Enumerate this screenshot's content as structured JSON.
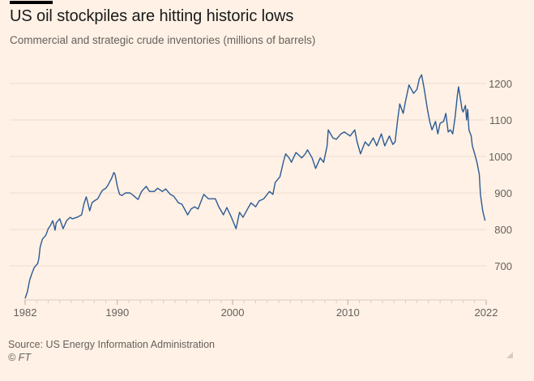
{
  "header": {
    "title": "US oil stockpiles are hitting historic lows",
    "subtitle": "Commercial and strategic crude inventories (millions of barrels)"
  },
  "footer": {
    "source": "Source: US Energy Information Administration",
    "copyright": "© FT"
  },
  "colors": {
    "background": "#FFF1E5",
    "line": "#2B5A94",
    "grid": "#EBDDD1",
    "tick_text": "#66605c"
  },
  "chart_data": {
    "type": "line",
    "title": "US oil stockpiles are hitting historic lows",
    "subtitle": "Commercial and strategic crude inventories (millions of barrels)",
    "xlabel": "",
    "ylabel": "",
    "xlim": [
      1982,
      2022
    ],
    "ylim": [
      600,
      1250
    ],
    "x_ticks": [
      1982,
      1990,
      2000,
      2010,
      2022
    ],
    "x_tick_labels": [
      "1982",
      "1990",
      "2000",
      "2010",
      "2022"
    ],
    "y_ticks": [
      700,
      800,
      900,
      1000,
      1100,
      1200
    ],
    "y_tick_labels": [
      "700",
      "800",
      "900",
      "1000",
      "1100",
      "1200"
    ],
    "y_axis_side": "right",
    "grid": true,
    "legend": "none",
    "series": [
      {
        "name": "Commercial and strategic crude inventories",
        "x": [
          1982.0,
          1982.2,
          1982.4,
          1982.6,
          1982.8,
          1983.1,
          1983.2,
          1983.3,
          1983.5,
          1983.8,
          1984.0,
          1984.2,
          1984.4,
          1984.6,
          1984.7,
          1985.0,
          1985.3,
          1985.6,
          1985.9,
          1986.1,
          1986.5,
          1986.9,
          1987.1,
          1987.3,
          1987.4,
          1987.6,
          1987.8,
          1988.0,
          1988.3,
          1988.5,
          1988.7,
          1989.0,
          1989.2,
          1989.5,
          1989.7,
          1989.8,
          1990.0,
          1990.2,
          1990.4,
          1990.7,
          1991.1,
          1991.4,
          1991.8,
          1992.1,
          1992.5,
          1992.8,
          1993.2,
          1993.5,
          1993.9,
          1994.2,
          1994.6,
          1994.9,
          1995.3,
          1995.6,
          1996.1,
          1996.4,
          1996.7,
          1997.0,
          1997.5,
          1997.9,
          1998.5,
          1998.8,
          1999.2,
          1999.5,
          1999.9,
          2000.3,
          2000.6,
          2000.9,
          2001.3,
          2001.6,
          2002.0,
          2002.3,
          2002.7,
          2003.0,
          2003.2,
          2003.5,
          2003.7,
          2004.1,
          2004.4,
          2004.6,
          2004.9,
          2005.1,
          2005.5,
          2006.0,
          2006.3,
          2006.5,
          2006.9,
          2007.2,
          2007.6,
          2007.9,
          2008.2,
          2008.3,
          2008.7,
          2009.0,
          2009.4,
          2009.7,
          2010.2,
          2010.6,
          2010.8,
          2011.1,
          2011.5,
          2011.8,
          2012.2,
          2012.5,
          2012.9,
          2013.2,
          2013.6,
          2013.9,
          2014.1,
          2014.3,
          2014.5,
          2014.8,
          2015.0,
          2015.3,
          2015.7,
          2016.0,
          2016.2,
          2016.4,
          2016.6,
          2016.9,
          2017.1,
          2017.3,
          2017.6,
          2017.8,
          2018.0,
          2018.3,
          2018.5,
          2018.7,
          2018.9,
          2019.1,
          2019.3,
          2019.5,
          2019.6,
          2019.8,
          2019.9,
          2020.0,
          2020.2,
          2020.3,
          2020.4,
          2020.5,
          2020.7,
          2020.8,
          2021.0,
          2021.2,
          2021.4,
          2021.5,
          2021.7,
          2021.9
        ],
        "values": [
          611,
          629,
          662,
          680,
          696,
          707,
          722,
          751,
          773,
          784,
          802,
          811,
          824,
          798,
          818,
          829,
          802,
          824,
          833,
          829,
          833,
          840,
          869,
          889,
          878,
          851,
          873,
          878,
          884,
          896,
          907,
          913,
          922,
          940,
          956,
          951,
          918,
          896,
          893,
          900,
          900,
          893,
          882,
          904,
          918,
          904,
          904,
          913,
          904,
          911,
          896,
          891,
          873,
          869,
          840,
          856,
          862,
          856,
          896,
          884,
          884,
          862,
          840,
          860,
          833,
          802,
          847,
          833,
          856,
          873,
          862,
          878,
          884,
          896,
          904,
          896,
          929,
          944,
          984,
          1007,
          996,
          984,
          1011,
          996,
          1007,
          1018,
          996,
          967,
          996,
          984,
          1029,
          1073,
          1051,
          1047,
          1062,
          1067,
          1056,
          1073,
          1040,
          1007,
          1040,
          1029,
          1051,
          1029,
          1062,
          1029,
          1056,
          1033,
          1040,
          1096,
          1144,
          1118,
          1151,
          1196,
          1173,
          1184,
          1213,
          1224,
          1189,
          1129,
          1096,
          1073,
          1096,
          1062,
          1091,
          1096,
          1118,
          1067,
          1073,
          1062,
          1107,
          1167,
          1191,
          1151,
          1129,
          1122,
          1140,
          1100,
          1129,
          1073,
          1056,
          1029,
          1007,
          984,
          951,
          896,
          851,
          824
        ]
      }
    ]
  }
}
